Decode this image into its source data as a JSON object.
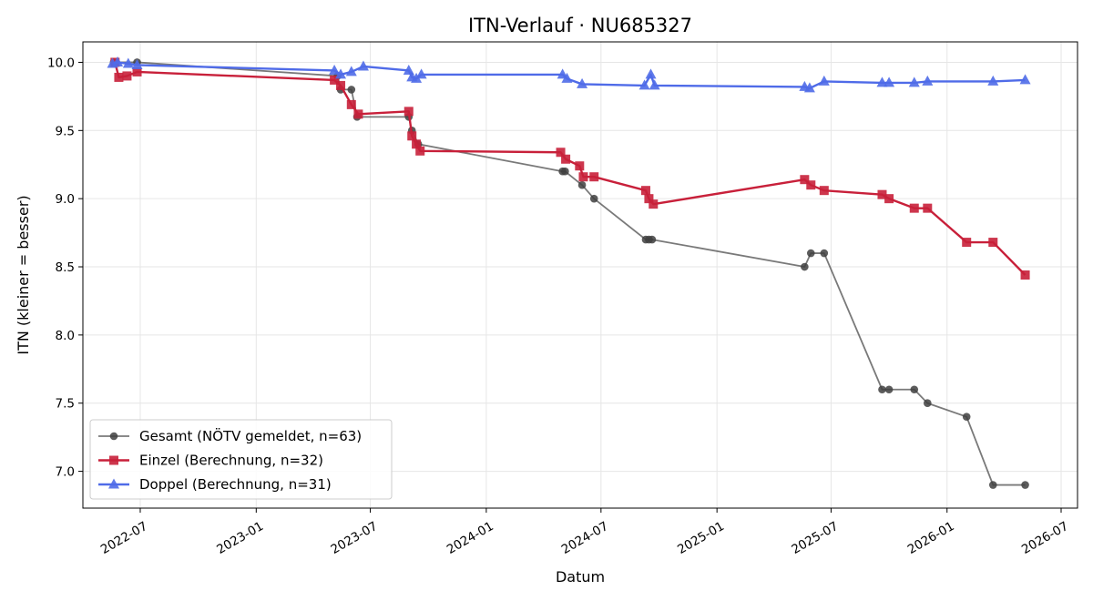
{
  "chart_data": {
    "type": "line",
    "title": "ITN-Verlauf · NU685327",
    "xlabel": "Datum",
    "ylabel": "ITN  (kleiner = besser)",
    "xlim": [
      "2022-04-01",
      "2026-07-27"
    ],
    "ylim": [
      6.73,
      10.15
    ],
    "x_ticks": [
      "2022-07",
      "2023-01",
      "2023-07",
      "2024-01",
      "2024-07",
      "2025-01",
      "2025-07",
      "2026-01",
      "2026-07"
    ],
    "y_ticks": [
      "7.0",
      "7.5",
      "8.0",
      "8.5",
      "9.0",
      "9.5",
      "10.0"
    ],
    "grid": true,
    "legend_position": "lower-left",
    "series": [
      {
        "name": "Gesamt (NÖTV gemeldet, n=63)",
        "color": "#404040",
        "marker": "circle",
        "points": [
          {
            "x": "2022-05-20",
            "y": 10.0
          },
          {
            "x": "2022-06-26",
            "y": 10.0
          },
          {
            "x": "2023-05-10",
            "y": 9.9
          },
          {
            "x": "2023-05-15",
            "y": 9.8
          },
          {
            "x": "2023-06-01",
            "y": 9.8
          },
          {
            "x": "2023-06-10",
            "y": 9.6
          },
          {
            "x": "2023-08-31",
            "y": 9.6
          },
          {
            "x": "2023-09-05",
            "y": 9.5
          },
          {
            "x": "2023-09-15",
            "y": 9.4
          },
          {
            "x": "2024-05-01",
            "y": 9.2
          },
          {
            "x": "2024-05-05",
            "y": 9.2
          },
          {
            "x": "2024-06-01",
            "y": 9.1
          },
          {
            "x": "2024-06-20",
            "y": 9.0
          },
          {
            "x": "2024-09-10",
            "y": 8.7
          },
          {
            "x": "2024-09-15",
            "y": 8.7
          },
          {
            "x": "2024-09-20",
            "y": 8.7
          },
          {
            "x": "2025-05-20",
            "y": 8.5
          },
          {
            "x": "2025-05-30",
            "y": 8.6
          },
          {
            "x": "2025-06-20",
            "y": 8.6
          },
          {
            "x": "2025-09-20",
            "y": 7.6
          },
          {
            "x": "2025-10-01",
            "y": 7.6
          },
          {
            "x": "2025-11-10",
            "y": 7.6
          },
          {
            "x": "2025-12-01",
            "y": 7.5
          },
          {
            "x": "2026-02-01",
            "y": 7.4
          },
          {
            "x": "2026-03-15",
            "y": 6.9
          },
          {
            "x": "2026-05-05",
            "y": 6.9
          }
        ]
      },
      {
        "name": "Einzel (Berechnung, n=32)",
        "color": "#c8203a",
        "marker": "square",
        "points": [
          {
            "x": "2022-05-22",
            "y": 10.0
          },
          {
            "x": "2022-05-28",
            "y": 9.89
          },
          {
            "x": "2022-06-10",
            "y": 9.9
          },
          {
            "x": "2022-06-26",
            "y": 9.93
          },
          {
            "x": "2023-05-05",
            "y": 9.87
          },
          {
            "x": "2023-05-15",
            "y": 9.83
          },
          {
            "x": "2023-06-01",
            "y": 9.69
          },
          {
            "x": "2023-06-12",
            "y": 9.62
          },
          {
            "x": "2023-08-31",
            "y": 9.64
          },
          {
            "x": "2023-09-05",
            "y": 9.46
          },
          {
            "x": "2023-09-12",
            "y": 9.4
          },
          {
            "x": "2023-09-18",
            "y": 9.35
          },
          {
            "x": "2024-04-28",
            "y": 9.34
          },
          {
            "x": "2024-05-06",
            "y": 9.29
          },
          {
            "x": "2024-05-28",
            "y": 9.24
          },
          {
            "x": "2024-06-03",
            "y": 9.16
          },
          {
            "x": "2024-06-20",
            "y": 9.16
          },
          {
            "x": "2024-09-10",
            "y": 9.06
          },
          {
            "x": "2024-09-15",
            "y": 9.0
          },
          {
            "x": "2024-09-22",
            "y": 8.96
          },
          {
            "x": "2025-05-20",
            "y": 9.14
          },
          {
            "x": "2025-05-30",
            "y": 9.1
          },
          {
            "x": "2025-06-20",
            "y": 9.06
          },
          {
            "x": "2025-09-20",
            "y": 9.03
          },
          {
            "x": "2025-10-01",
            "y": 9.0
          },
          {
            "x": "2025-11-10",
            "y": 8.93
          },
          {
            "x": "2025-12-01",
            "y": 8.93
          },
          {
            "x": "2026-02-01",
            "y": 8.68
          },
          {
            "x": "2026-03-15",
            "y": 8.68
          },
          {
            "x": "2026-05-05",
            "y": 8.44
          }
        ]
      },
      {
        "name": "Doppel (Berechnung, n=31)",
        "color": "#4f6be8",
        "marker": "triangle",
        "points": [
          {
            "x": "2022-05-18",
            "y": 9.99
          },
          {
            "x": "2022-05-26",
            "y": 10.0
          },
          {
            "x": "2022-06-12",
            "y": 9.99
          },
          {
            "x": "2022-06-26",
            "y": 9.98
          },
          {
            "x": "2023-05-05",
            "y": 9.94
          },
          {
            "x": "2023-05-15",
            "y": 9.91
          },
          {
            "x": "2023-06-01",
            "y": 9.93
          },
          {
            "x": "2023-06-20",
            "y": 9.97
          },
          {
            "x": "2023-08-31",
            "y": 9.94
          },
          {
            "x": "2023-09-05",
            "y": 9.89
          },
          {
            "x": "2023-09-12",
            "y": 9.88
          },
          {
            "x": "2023-09-20",
            "y": 9.91
          },
          {
            "x": "2024-05-01",
            "y": 9.91
          },
          {
            "x": "2024-05-08",
            "y": 9.88
          },
          {
            "x": "2024-06-01",
            "y": 9.84
          },
          {
            "x": "2024-09-08",
            "y": 9.83
          },
          {
            "x": "2024-09-18",
            "y": 9.91
          },
          {
            "x": "2024-09-24",
            "y": 9.83
          },
          {
            "x": "2025-05-20",
            "y": 9.82
          },
          {
            "x": "2025-05-28",
            "y": 9.81
          },
          {
            "x": "2025-06-20",
            "y": 9.86
          },
          {
            "x": "2025-09-20",
            "y": 9.85
          },
          {
            "x": "2025-10-01",
            "y": 9.85
          },
          {
            "x": "2025-11-10",
            "y": 9.85
          },
          {
            "x": "2025-12-01",
            "y": 9.86
          },
          {
            "x": "2026-03-15",
            "y": 9.86
          },
          {
            "x": "2026-05-05",
            "y": 9.87
          }
        ]
      }
    ]
  }
}
